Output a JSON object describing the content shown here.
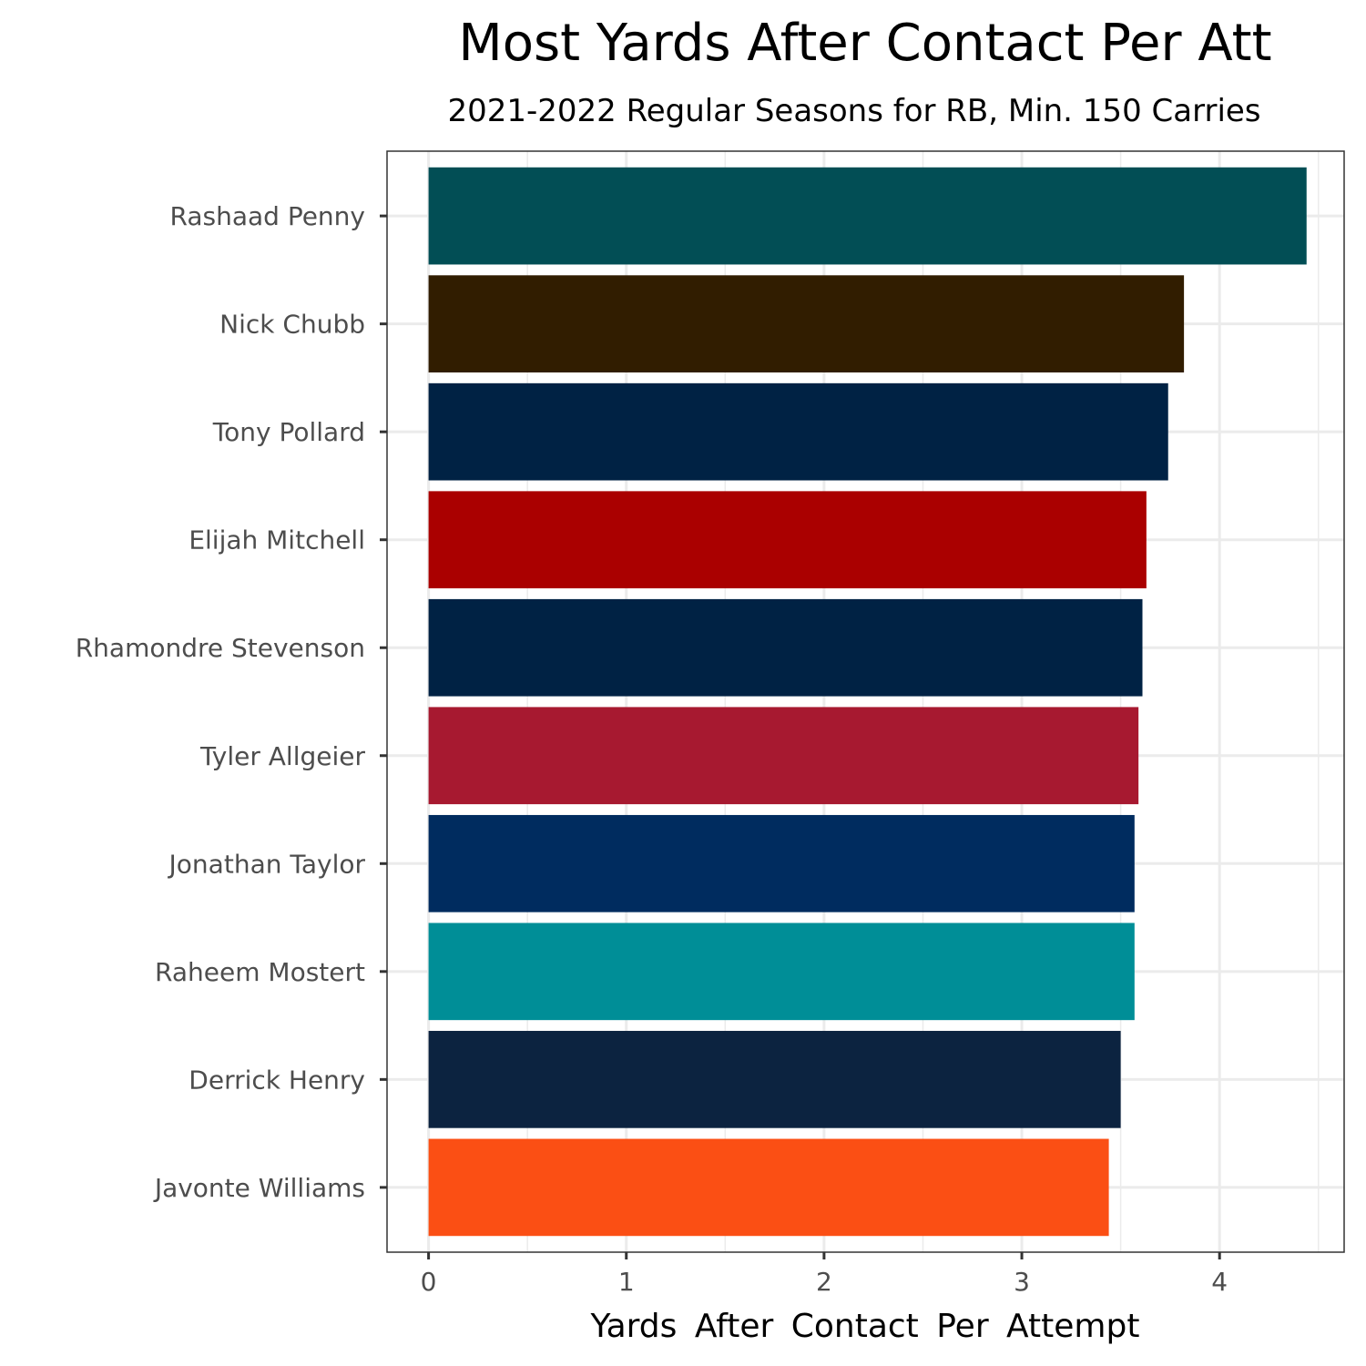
{
  "chart_data": {
    "type": "bar",
    "orientation": "horizontal",
    "title": "Most Yards After Contact Per Att",
    "subtitle": "2021-2022 Regular Seasons for RB, Min. 150 Carries",
    "xlabel": "Yards  After  Contact  Per  Attempt",
    "ylabel": "",
    "xlim": [
      -0.21,
      4.63
    ],
    "x_ticks": [
      0,
      1,
      2,
      3,
      4
    ],
    "x_tick_labels": [
      "0",
      "1",
      "2",
      "3",
      "4"
    ],
    "grid": true,
    "legend": "none",
    "categories": [
      "Rashaad Penny",
      "Nick Chubb",
      "Tony Pollard",
      "Elijah Mitchell",
      "Rhamondre Stevenson",
      "Tyler Allgeier",
      "Jonathan Taylor",
      "Raheem Mostert",
      "Derrick Henry",
      "Javonte Williams"
    ],
    "values": [
      4.44,
      3.82,
      3.74,
      3.63,
      3.61,
      3.59,
      3.57,
      3.57,
      3.5,
      3.44
    ],
    "colors": [
      "#024E55",
      "#311D00",
      "#002244",
      "#AA0000",
      "#002244",
      "#A71930",
      "#002C5F",
      "#008E97",
      "#0C2340",
      "#FB4F14"
    ]
  }
}
